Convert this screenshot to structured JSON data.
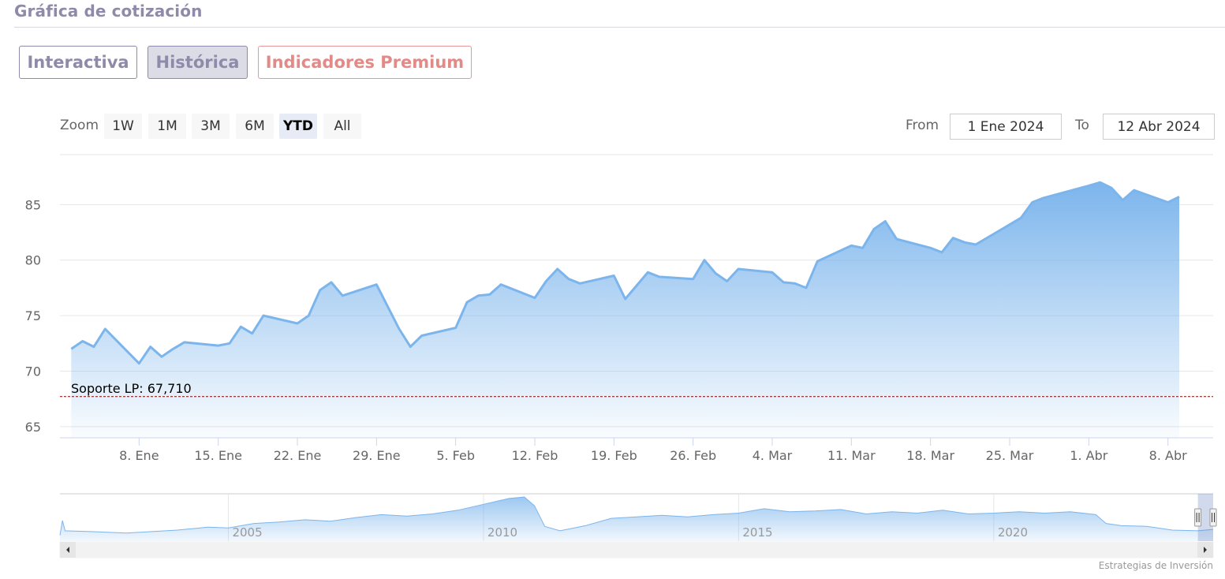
{
  "page": {
    "title": "Gráfica de cotización"
  },
  "tabs": [
    {
      "label": "Interactiva"
    },
    {
      "label": "Histórica"
    },
    {
      "label": "Indicadores Premium"
    }
  ],
  "range_selector": {
    "zoom_label": "Zoom",
    "buttons": [
      "1W",
      "1M",
      "3M",
      "6M",
      "YTD",
      "All"
    ],
    "active": "YTD",
    "from_label": "From",
    "from_value": "1 Ene 2024",
    "to_label": "To",
    "to_value": "12 Abr 2024"
  },
  "colors": {
    "line": "#7cb5ec",
    "support_line": "#8b0000",
    "title": "#8f8aa9",
    "premium": "#e38a87"
  },
  "chart_data": {
    "type": "area",
    "title": "",
    "xlabel": "",
    "ylabel": "",
    "ylim": [
      64,
      89.5
    ],
    "x_range": [
      "2024-01-01",
      "2024-04-12"
    ],
    "yticks": [
      65,
      70,
      75,
      80,
      85
    ],
    "xticks": [
      {
        "date": "2024-01-08",
        "label": "8. Ene"
      },
      {
        "date": "2024-01-15",
        "label": "15. Ene"
      },
      {
        "date": "2024-01-22",
        "label": "22. Ene"
      },
      {
        "date": "2024-01-29",
        "label": "29. Ene"
      },
      {
        "date": "2024-02-05",
        "label": "5. Feb"
      },
      {
        "date": "2024-02-12",
        "label": "12. Feb"
      },
      {
        "date": "2024-02-19",
        "label": "19. Feb"
      },
      {
        "date": "2024-02-26",
        "label": "26. Feb"
      },
      {
        "date": "2024-03-04",
        "label": "4. Mar"
      },
      {
        "date": "2024-03-11",
        "label": "11. Mar"
      },
      {
        "date": "2024-03-18",
        "label": "18. Mar"
      },
      {
        "date": "2024-03-25",
        "label": "25. Mar"
      },
      {
        "date": "2024-04-01",
        "label": "1. Abr"
      },
      {
        "date": "2024-04-08",
        "label": "8. Abr"
      }
    ],
    "grid": true,
    "series": [
      {
        "points": [
          [
            "2024-01-02",
            72.0
          ],
          [
            "2024-01-03",
            72.7
          ],
          [
            "2024-01-04",
            72.2
          ],
          [
            "2024-01-05",
            73.8
          ],
          [
            "2024-01-08",
            70.7
          ],
          [
            "2024-01-09",
            72.2
          ],
          [
            "2024-01-10",
            71.3
          ],
          [
            "2024-01-11",
            72.0
          ],
          [
            "2024-01-12",
            72.6
          ],
          [
            "2024-01-15",
            72.3
          ],
          [
            "2024-01-16",
            72.5
          ],
          [
            "2024-01-17",
            74.0
          ],
          [
            "2024-01-18",
            73.4
          ],
          [
            "2024-01-19",
            75.0
          ],
          [
            "2024-01-22",
            74.3
          ],
          [
            "2024-01-23",
            75.0
          ],
          [
            "2024-01-24",
            77.3
          ],
          [
            "2024-01-25",
            78.0
          ],
          [
            "2024-01-26",
            76.8
          ],
          [
            "2024-01-29",
            77.8
          ],
          [
            "2024-01-30",
            75.8
          ],
          [
            "2024-01-31",
            73.8
          ],
          [
            "2024-02-01",
            72.2
          ],
          [
            "2024-02-02",
            73.2
          ],
          [
            "2024-02-05",
            73.9
          ],
          [
            "2024-02-06",
            76.2
          ],
          [
            "2024-02-07",
            76.8
          ],
          [
            "2024-02-08",
            76.9
          ],
          [
            "2024-02-09",
            77.8
          ],
          [
            "2024-02-12",
            76.6
          ],
          [
            "2024-02-13",
            78.1
          ],
          [
            "2024-02-14",
            79.2
          ],
          [
            "2024-02-15",
            78.3
          ],
          [
            "2024-02-16",
            77.9
          ],
          [
            "2024-02-19",
            78.6
          ],
          [
            "2024-02-20",
            76.5
          ],
          [
            "2024-02-21",
            77.7
          ],
          [
            "2024-02-22",
            78.9
          ],
          [
            "2024-02-23",
            78.5
          ],
          [
            "2024-02-26",
            78.3
          ],
          [
            "2024-02-27",
            80.0
          ],
          [
            "2024-02-28",
            78.8
          ],
          [
            "2024-02-29",
            78.1
          ],
          [
            "2024-03-01",
            79.2
          ],
          [
            "2024-03-04",
            78.9
          ],
          [
            "2024-03-05",
            78.0
          ],
          [
            "2024-03-06",
            77.9
          ],
          [
            "2024-03-07",
            77.5
          ],
          [
            "2024-03-08",
            79.9
          ],
          [
            "2024-03-11",
            81.3
          ],
          [
            "2024-03-12",
            81.1
          ],
          [
            "2024-03-13",
            82.8
          ],
          [
            "2024-03-14",
            83.5
          ],
          [
            "2024-03-15",
            81.9
          ],
          [
            "2024-03-18",
            81.1
          ],
          [
            "2024-03-19",
            80.7
          ],
          [
            "2024-03-20",
            82.0
          ],
          [
            "2024-03-21",
            81.6
          ],
          [
            "2024-03-22",
            81.4
          ],
          [
            "2024-03-25",
            83.2
          ],
          [
            "2024-03-26",
            83.8
          ],
          [
            "2024-03-27",
            85.2
          ],
          [
            "2024-03-28",
            85.6
          ],
          [
            "2024-04-01",
            86.7
          ],
          [
            "2024-04-02",
            87.0
          ],
          [
            "2024-04-03",
            86.5
          ],
          [
            "2024-04-04",
            85.4
          ],
          [
            "2024-04-05",
            86.3
          ],
          [
            "2024-04-08",
            85.2
          ],
          [
            "2024-04-09",
            85.7
          ]
        ]
      }
    ],
    "plot_lines": [
      {
        "value": 67.71,
        "label": "Soporte LP: 67,710",
        "style": "dashed"
      }
    ],
    "navigator": {
      "year_labels": [
        {
          "year": 2005,
          "label": "2005"
        },
        {
          "year": 2010,
          "label": "2010"
        },
        {
          "year": 2015,
          "label": "2015"
        },
        {
          "year": 2020,
          "label": "2020"
        }
      ],
      "x_range": [
        2001.7,
        2024.3
      ],
      "selected": [
        2024.0,
        2024.3
      ],
      "series": [
        [
          2001.7,
          8
        ],
        [
          2001.75,
          28
        ],
        [
          2001.8,
          14
        ],
        [
          2002.3,
          13
        ],
        [
          2003.0,
          11
        ],
        [
          2004.0,
          15
        ],
        [
          2004.6,
          19
        ],
        [
          2005.0,
          18
        ],
        [
          2005.5,
          24
        ],
        [
          2006.0,
          26
        ],
        [
          2006.5,
          29
        ],
        [
          2007.0,
          27
        ],
        [
          2007.5,
          32
        ],
        [
          2008.0,
          36
        ],
        [
          2008.5,
          34
        ],
        [
          2009.0,
          37
        ],
        [
          2009.5,
          42
        ],
        [
          2010.0,
          50
        ],
        [
          2010.5,
          58
        ],
        [
          2010.8,
          60
        ],
        [
          2011.0,
          48
        ],
        [
          2011.2,
          20
        ],
        [
          2011.5,
          14
        ],
        [
          2012.0,
          21
        ],
        [
          2012.5,
          31
        ],
        [
          2013.0,
          33
        ],
        [
          2013.5,
          35
        ],
        [
          2014.0,
          33
        ],
        [
          2014.5,
          36
        ],
        [
          2015.0,
          38
        ],
        [
          2015.5,
          44
        ],
        [
          2016.0,
          40
        ],
        [
          2016.5,
          41
        ],
        [
          2017.0,
          43
        ],
        [
          2017.5,
          37
        ],
        [
          2018.0,
          40
        ],
        [
          2018.5,
          38
        ],
        [
          2019.0,
          42
        ],
        [
          2019.5,
          37
        ],
        [
          2020.0,
          38
        ],
        [
          2020.5,
          40
        ],
        [
          2021.0,
          38
        ],
        [
          2021.5,
          40
        ],
        [
          2022.0,
          36
        ],
        [
          2022.2,
          24
        ],
        [
          2022.5,
          21
        ],
        [
          2023.0,
          20
        ],
        [
          2023.5,
          15
        ],
        [
          2024.0,
          14
        ],
        [
          2024.3,
          16
        ]
      ]
    }
  },
  "credits": {
    "text": "Estrategias de Inversión"
  }
}
